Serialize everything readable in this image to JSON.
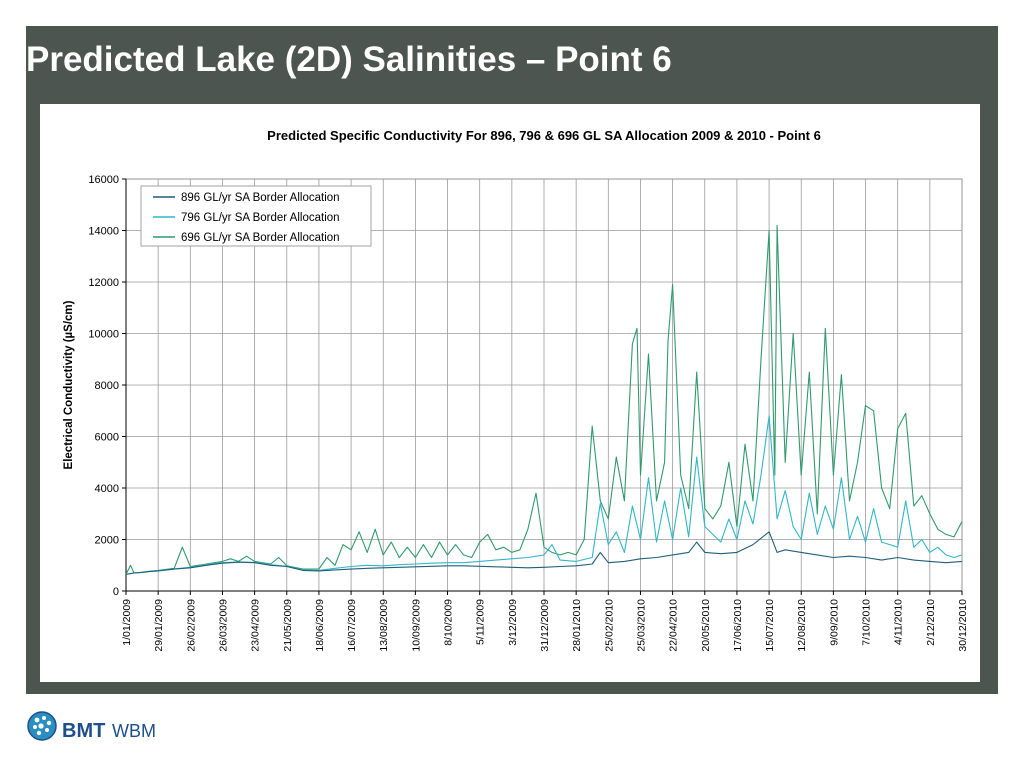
{
  "slide": {
    "title": "Predicted Lake (2D) Salinities – Point 6"
  },
  "logo": {
    "brand": "BMT",
    "division": "WBM"
  },
  "colors": {
    "frame": "#4d5550",
    "series_896": "#1f5f7a",
    "series_796": "#31b6c8",
    "series_696": "#2f9a6e",
    "grid": "#9a9a9a",
    "logo_blue": "#1e4f8c"
  },
  "chart_data": {
    "type": "line",
    "title": "Predicted Specific Conductivity For 896, 796 & 696 GL SA Allocation 2009 & 2010 - Point 6",
    "ylabel": "Electrical Conductivity (µS/cm)",
    "xlabel": "",
    "ylim": [
      0,
      16000
    ],
    "yticks": [
      "0",
      "2000",
      "4000",
      "6000",
      "8000",
      "10000",
      "12000",
      "14000",
      "16000"
    ],
    "xrange": [
      "1/01/2009",
      "30/12/2010"
    ],
    "xticks": [
      "1/01/2009",
      "29/01/2009",
      "26/02/2009",
      "26/03/2009",
      "23/04/2009",
      "21/05/2009",
      "18/06/2009",
      "16/07/2009",
      "13/08/2009",
      "10/09/2009",
      "8/10/2009",
      "5/11/2009",
      "3/12/2009",
      "31/12/2009",
      "28/01/2010",
      "25/02/2010",
      "25/03/2010",
      "22/04/2010",
      "20/05/2010",
      "17/06/2010",
      "15/07/2010",
      "12/08/2010",
      "9/09/2010",
      "7/10/2010",
      "4/11/2010",
      "2/12/2010",
      "30/12/2010"
    ],
    "grid": true,
    "legend_position": "top-left",
    "series": [
      {
        "name": "896 GL/yr SA Border Allocation",
        "color": "#1f5f7a",
        "points": [
          [
            "1/01/2009",
            650
          ],
          [
            "8/01/2009",
            700
          ],
          [
            "15/01/2009",
            720
          ],
          [
            "22/01/2009",
            760
          ],
          [
            "29/01/2009",
            780
          ],
          [
            "12/02/2009",
            850
          ],
          [
            "26/02/2009",
            900
          ],
          [
            "12/03/2009",
            1000
          ],
          [
            "26/03/2009",
            1080
          ],
          [
            "9/04/2009",
            1120
          ],
          [
            "23/04/2009",
            1100
          ],
          [
            "7/05/2009",
            1000
          ],
          [
            "21/05/2009",
            950
          ],
          [
            "4/06/2009",
            800
          ],
          [
            "18/06/2009",
            780
          ],
          [
            "2/07/2009",
            820
          ],
          [
            "16/07/2009",
            850
          ],
          [
            "30/07/2009",
            880
          ],
          [
            "13/08/2009",
            900
          ],
          [
            "27/08/2009",
            920
          ],
          [
            "10/09/2009",
            940
          ],
          [
            "24/09/2009",
            960
          ],
          [
            "8/10/2009",
            980
          ],
          [
            "22/10/2009",
            980
          ],
          [
            "5/11/2009",
            960
          ],
          [
            "19/11/2009",
            940
          ],
          [
            "3/12/2009",
            920
          ],
          [
            "17/12/2009",
            900
          ],
          [
            "31/12/2009",
            920
          ],
          [
            "14/01/2010",
            950
          ],
          [
            "28/01/2010",
            980
          ],
          [
            "11/02/2010",
            1050
          ],
          [
            "18/02/2010",
            1500
          ],
          [
            "25/02/2010",
            1100
          ],
          [
            "11/03/2010",
            1150
          ],
          [
            "25/03/2010",
            1250
          ],
          [
            "8/04/2010",
            1300
          ],
          [
            "22/04/2010",
            1400
          ],
          [
            "6/05/2010",
            1500
          ],
          [
            "13/05/2010",
            1900
          ],
          [
            "20/05/2010",
            1500
          ],
          [
            "3/06/2010",
            1450
          ],
          [
            "17/06/2010",
            1500
          ],
          [
            "1/07/2010",
            1800
          ],
          [
            "15/07/2010",
            2300
          ],
          [
            "22/07/2010",
            1500
          ],
          [
            "29/07/2010",
            1600
          ],
          [
            "12/08/2010",
            1500
          ],
          [
            "26/08/2010",
            1400
          ],
          [
            "9/09/2010",
            1300
          ],
          [
            "23/09/2010",
            1350
          ],
          [
            "7/10/2010",
            1300
          ],
          [
            "21/10/2010",
            1200
          ],
          [
            "4/11/2010",
            1300
          ],
          [
            "18/11/2010",
            1200
          ],
          [
            "2/12/2010",
            1150
          ],
          [
            "16/12/2010",
            1100
          ],
          [
            "30/12/2010",
            1150
          ]
        ]
      },
      {
        "name": "796 GL/yr SA Border Allocation",
        "color": "#31b6c8",
        "points": [
          [
            "1/01/2009",
            650
          ],
          [
            "8/01/2009",
            700
          ],
          [
            "15/01/2009",
            720
          ],
          [
            "22/01/2009",
            760
          ],
          [
            "29/01/2009",
            790
          ],
          [
            "12/02/2009",
            860
          ],
          [
            "26/02/2009",
            920
          ],
          [
            "12/03/2009",
            1020
          ],
          [
            "26/03/2009",
            1100
          ],
          [
            "9/04/2009",
            1130
          ],
          [
            "23/04/2009",
            1110
          ],
          [
            "7/05/2009",
            1020
          ],
          [
            "21/05/2009",
            960
          ],
          [
            "4/06/2009",
            810
          ],
          [
            "18/06/2009",
            800
          ],
          [
            "2/07/2009",
            880
          ],
          [
            "16/07/2009",
            950
          ],
          [
            "30/07/2009",
            1000
          ],
          [
            "13/08/2009",
            980
          ],
          [
            "27/08/2009",
            1020
          ],
          [
            "10/09/2009",
            1050
          ],
          [
            "24/09/2009",
            1080
          ],
          [
            "8/10/2009",
            1100
          ],
          [
            "22/10/2009",
            1100
          ],
          [
            "5/11/2009",
            1150
          ],
          [
            "19/11/2009",
            1200
          ],
          [
            "3/12/2009",
            1250
          ],
          [
            "17/12/2009",
            1300
          ],
          [
            "31/12/2009",
            1400
          ],
          [
            "7/01/2010",
            1800
          ],
          [
            "14/01/2010",
            1200
          ],
          [
            "28/01/2010",
            1150
          ],
          [
            "11/02/2010",
            1300
          ],
          [
            "18/02/2010",
            3400
          ],
          [
            "25/02/2010",
            1800
          ],
          [
            "4/03/2010",
            2300
          ],
          [
            "11/03/2010",
            1500
          ],
          [
            "18/03/2010",
            3300
          ],
          [
            "25/03/2010",
            2000
          ],
          [
            "1/04/2010",
            4400
          ],
          [
            "8/04/2010",
            1900
          ],
          [
            "15/04/2010",
            3500
          ],
          [
            "22/04/2010",
            2000
          ],
          [
            "29/04/2010",
            4000
          ],
          [
            "6/05/2010",
            2100
          ],
          [
            "13/05/2010",
            5200
          ],
          [
            "20/05/2010",
            2500
          ],
          [
            "27/05/2010",
            2200
          ],
          [
            "3/06/2010",
            1900
          ],
          [
            "10/06/2010",
            2800
          ],
          [
            "17/06/2010",
            2000
          ],
          [
            "24/06/2010",
            3500
          ],
          [
            "1/07/2010",
            2600
          ],
          [
            "8/07/2010",
            4500
          ],
          [
            "15/07/2010",
            6800
          ],
          [
            "22/07/2010",
            2800
          ],
          [
            "29/07/2010",
            3900
          ],
          [
            "5/08/2010",
            2500
          ],
          [
            "12/08/2010",
            2000
          ],
          [
            "19/08/2010",
            3800
          ],
          [
            "26/08/2010",
            2200
          ],
          [
            "2/09/2010",
            3300
          ],
          [
            "9/09/2010",
            2400
          ],
          [
            "16/09/2010",
            4400
          ],
          [
            "23/09/2010",
            2000
          ],
          [
            "30/09/2010",
            2900
          ],
          [
            "7/10/2010",
            1900
          ],
          [
            "14/10/2010",
            3200
          ],
          [
            "21/10/2010",
            1900
          ],
          [
            "28/10/2010",
            1800
          ],
          [
            "4/11/2010",
            1700
          ],
          [
            "11/11/2010",
            3500
          ],
          [
            "18/11/2010",
            1700
          ],
          [
            "25/11/2010",
            2000
          ],
          [
            "2/12/2010",
            1500
          ],
          [
            "9/12/2010",
            1700
          ],
          [
            "16/12/2010",
            1400
          ],
          [
            "23/12/2010",
            1300
          ],
          [
            "30/12/2010",
            1400
          ]
        ]
      },
      {
        "name": "696 GL/yr SA Border Allocation",
        "color": "#2f9a6e",
        "points": [
          [
            "1/01/2009",
            650
          ],
          [
            "5/01/2009",
            1000
          ],
          [
            "8/01/2009",
            700
          ],
          [
            "15/01/2009",
            730
          ],
          [
            "22/01/2009",
            770
          ],
          [
            "29/01/2009",
            800
          ],
          [
            "12/02/2009",
            880
          ],
          [
            "19/02/2009",
            1700
          ],
          [
            "26/02/2009",
            950
          ],
          [
            "12/03/2009",
            1050
          ],
          [
            "26/03/2009",
            1150
          ],
          [
            "2/04/2009",
            1250
          ],
          [
            "9/04/2009",
            1150
          ],
          [
            "16/04/2009",
            1350
          ],
          [
            "23/04/2009",
            1150
          ],
          [
            "7/05/2009",
            1050
          ],
          [
            "14/05/2009",
            1300
          ],
          [
            "21/05/2009",
            980
          ],
          [
            "4/06/2009",
            850
          ],
          [
            "18/06/2009",
            850
          ],
          [
            "25/06/2009",
            1300
          ],
          [
            "2/07/2009",
            1000
          ],
          [
            "9/07/2009",
            1800
          ],
          [
            "16/07/2009",
            1600
          ],
          [
            "23/07/2009",
            2300
          ],
          [
            "30/07/2009",
            1500
          ],
          [
            "6/08/2009",
            2400
          ],
          [
            "13/08/2009",
            1400
          ],
          [
            "20/08/2009",
            1900
          ],
          [
            "27/08/2009",
            1300
          ],
          [
            "3/09/2009",
            1700
          ],
          [
            "10/09/2009",
            1300
          ],
          [
            "17/09/2009",
            1800
          ],
          [
            "24/09/2009",
            1300
          ],
          [
            "1/10/2009",
            1900
          ],
          [
            "8/10/2009",
            1400
          ],
          [
            "15/10/2009",
            1800
          ],
          [
            "22/10/2009",
            1400
          ],
          [
            "29/10/2009",
            1300
          ],
          [
            "5/11/2009",
            1900
          ],
          [
            "12/11/2009",
            2200
          ],
          [
            "19/11/2009",
            1600
          ],
          [
            "26/11/2009",
            1700
          ],
          [
            "3/12/2009",
            1500
          ],
          [
            "10/12/2009",
            1600
          ],
          [
            "17/12/2009",
            2400
          ],
          [
            "24/12/2009",
            3800
          ],
          [
            "31/12/2009",
            1700
          ],
          [
            "7/01/2010",
            1500
          ],
          [
            "14/01/2010",
            1400
          ],
          [
            "21/01/2010",
            1500
          ],
          [
            "28/01/2010",
            1400
          ],
          [
            "4/02/2010",
            2000
          ],
          [
            "11/02/2010",
            6400
          ],
          [
            "18/02/2010",
            3500
          ],
          [
            "25/02/2010",
            2800
          ],
          [
            "4/03/2010",
            5200
          ],
          [
            "11/03/2010",
            3500
          ],
          [
            "18/03/2010",
            9600
          ],
          [
            "22/03/2010",
            10200
          ],
          [
            "25/03/2010",
            4500
          ],
          [
            "1/04/2010",
            9200
          ],
          [
            "8/04/2010",
            3500
          ],
          [
            "15/04/2010",
            5000
          ],
          [
            "18/04/2010",
            9700
          ],
          [
            "22/04/2010",
            11900
          ],
          [
            "29/04/2010",
            4500
          ],
          [
            "6/05/2010",
            3200
          ],
          [
            "13/05/2010",
            8500
          ],
          [
            "20/05/2010",
            3200
          ],
          [
            "27/05/2010",
            2800
          ],
          [
            "3/06/2010",
            3300
          ],
          [
            "10/06/2010",
            5000
          ],
          [
            "17/06/2010",
            2500
          ],
          [
            "24/06/2010",
            5700
          ],
          [
            "1/07/2010",
            3500
          ],
          [
            "8/07/2010",
            9000
          ],
          [
            "15/07/2010",
            14000
          ],
          [
            "20/07/2010",
            4500
          ],
          [
            "22/07/2010",
            14200
          ],
          [
            "29/07/2010",
            5000
          ],
          [
            "5/08/2010",
            10000
          ],
          [
            "12/08/2010",
            4500
          ],
          [
            "19/08/2010",
            8500
          ],
          [
            "26/08/2010",
            3000
          ],
          [
            "2/09/2010",
            10200
          ],
          [
            "9/09/2010",
            4500
          ],
          [
            "16/09/2010",
            8400
          ],
          [
            "23/09/2010",
            3500
          ],
          [
            "30/09/2010",
            5000
          ],
          [
            "7/10/2010",
            7200
          ],
          [
            "14/10/2010",
            7000
          ],
          [
            "21/10/2010",
            4000
          ],
          [
            "28/10/2010",
            3200
          ],
          [
            "4/11/2010",
            6300
          ],
          [
            "11/11/2010",
            6900
          ],
          [
            "18/11/2010",
            3300
          ],
          [
            "25/11/2010",
            3700
          ],
          [
            "2/12/2010",
            3000
          ],
          [
            "9/12/2010",
            2400
          ],
          [
            "16/12/2010",
            2200
          ],
          [
            "23/12/2010",
            2100
          ],
          [
            "30/12/2010",
            2700
          ]
        ]
      }
    ]
  }
}
